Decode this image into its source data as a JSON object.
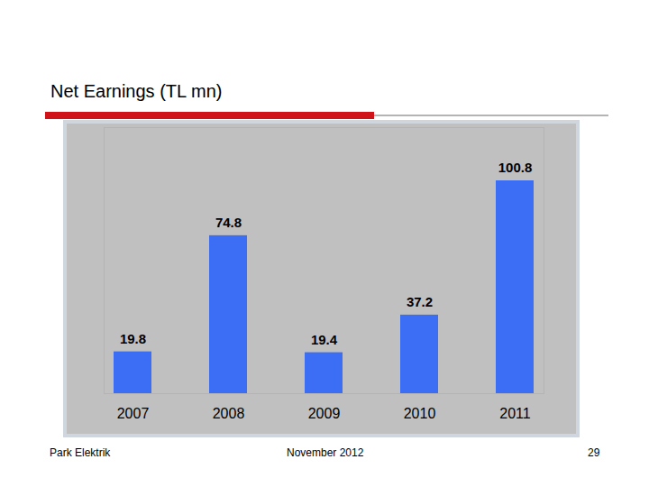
{
  "chart_data": {
    "type": "bar",
    "title": "Net Earnings (TL mn)",
    "categories": [
      "2007",
      "2008",
      "2009",
      "2010",
      "2011"
    ],
    "values": [
      19.8,
      74.8,
      19.4,
      37.2,
      100.8
    ],
    "color": "#3b6ef5",
    "ylim": [
      0,
      126
    ],
    "data_labels": true,
    "tick_labels": "x",
    "grid": false
  },
  "footer": {
    "left": "Park Elektrik",
    "center": "November 2012",
    "page": "29"
  }
}
